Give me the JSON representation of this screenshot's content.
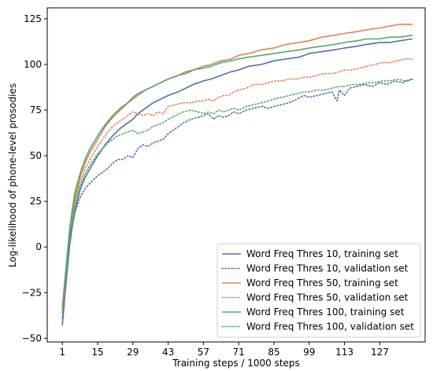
{
  "chart_data": {
    "type": "line",
    "title": "",
    "xlabel": "Training steps / 1000 steps",
    "ylabel": "Log-likelihood of phone-level prosodies",
    "xlim": [
      -5,
      145
    ],
    "ylim": [
      -52,
      131
    ],
    "xticks": [
      1,
      15,
      29,
      43,
      57,
      71,
      85,
      99,
      113,
      127
    ],
    "yticks": [
      -50,
      -25,
      0,
      25,
      50,
      75,
      100,
      125
    ],
    "grid": false,
    "legend_position": "lower-right",
    "series": [
      {
        "name": "Word Freq Thres 10, training set",
        "color": "#4c72b0",
        "style": "solid",
        "x": [
          1,
          2,
          3,
          4,
          5,
          6,
          8,
          10,
          12,
          15,
          18,
          21,
          24,
          27,
          29,
          31,
          34,
          37,
          40,
          43,
          47,
          50,
          53,
          57,
          60,
          64,
          68,
          71,
          75,
          80,
          85,
          90,
          95,
          99,
          104,
          109,
          113,
          118,
          122,
          127,
          131,
          135,
          140
        ],
        "y": [
          -43,
          -27,
          -12,
          2,
          12,
          20,
          31,
          38,
          43,
          50,
          56,
          61,
          65,
          68,
          70,
          73,
          76,
          79,
          81,
          83,
          85,
          87,
          89,
          91,
          92,
          94,
          96,
          97,
          99,
          100,
          102,
          103,
          104,
          106,
          107,
          108,
          109,
          110,
          111,
          112,
          112,
          113,
          114
        ]
      },
      {
        "name": "Word Freq Thres 10, validation set",
        "color": "#4c72b0",
        "style": "dotted",
        "x": [
          1,
          2,
          3,
          4,
          5,
          6,
          8,
          10,
          12,
          15,
          17,
          19,
          21,
          23,
          25,
          27,
          29,
          31,
          33,
          35,
          37,
          39,
          41,
          43,
          46,
          49,
          52,
          55,
          57,
          59,
          61,
          63,
          65,
          67,
          69,
          71,
          74,
          77,
          80,
          83,
          85,
          88,
          91,
          94,
          97,
          99,
          102,
          105,
          108,
          110,
          111,
          113,
          115,
          118,
          121,
          124,
          127,
          130,
          133,
          136,
          140
        ],
        "y": [
          -39,
          -25,
          -11,
          3,
          12,
          19,
          27,
          32,
          35,
          39,
          41,
          43,
          46,
          48,
          48,
          50,
          49,
          54,
          56,
          55,
          57,
          58,
          59,
          62,
          65,
          68,
          70,
          71,
          72,
          73,
          70,
          72,
          71,
          72,
          74,
          73,
          75,
          76,
          77,
          76,
          77,
          78,
          79,
          81,
          83,
          82,
          83,
          84,
          85,
          80,
          86,
          83,
          87,
          88,
          89,
          88,
          90,
          89,
          91,
          90,
          92
        ]
      },
      {
        "name": "Word Freq Thres 50, training set",
        "color": "#dd8452",
        "style": "solid",
        "x": [
          1,
          2,
          3,
          4,
          5,
          6,
          8,
          10,
          12,
          15,
          18,
          21,
          24,
          27,
          29,
          31,
          34,
          37,
          40,
          43,
          47,
          50,
          53,
          57,
          60,
          64,
          68,
          71,
          75,
          80,
          85,
          90,
          95,
          99,
          104,
          109,
          113,
          118,
          122,
          127,
          131,
          135,
          140
        ],
        "y": [
          -37,
          -22,
          -7,
          8,
          19,
          27,
          38,
          46,
          52,
          59,
          66,
          71,
          75,
          79,
          81,
          83,
          86,
          88,
          90,
          92,
          94,
          96,
          97,
          99,
          100,
          102,
          103,
          105,
          106,
          108,
          109,
          111,
          112,
          113,
          115,
          116,
          117,
          118,
          119,
          120,
          121,
          122,
          122
        ]
      },
      {
        "name": "Word Freq Thres 50, validation set",
        "color": "#dd8452",
        "style": "dotted",
        "x": [
          1,
          2,
          3,
          4,
          5,
          6,
          8,
          10,
          12,
          15,
          17,
          19,
          21,
          23,
          25,
          27,
          29,
          31,
          33,
          35,
          37,
          39,
          41,
          43,
          46,
          49,
          52,
          55,
          57,
          59,
          61,
          63,
          65,
          67,
          69,
          71,
          74,
          77,
          80,
          83,
          85,
          88,
          91,
          94,
          97,
          99,
          102,
          105,
          108,
          111,
          113,
          116,
          119,
          122,
          125,
          128,
          131,
          134,
          137,
          140
        ],
        "y": [
          -35,
          -20,
          -6,
          8,
          18,
          25,
          35,
          43,
          48,
          55,
          59,
          63,
          66,
          68,
          70,
          72,
          74,
          73,
          72,
          73,
          72,
          74,
          73,
          77,
          78,
          79,
          79,
          80,
          80,
          81,
          80,
          82,
          83,
          83,
          85,
          86,
          87,
          89,
          89,
          90,
          91,
          91,
          92,
          92,
          93,
          93,
          94,
          95,
          95,
          96,
          97,
          97,
          98,
          99,
          100,
          101,
          101,
          102,
          103,
          103
        ]
      },
      {
        "name": "Word Freq Thres 100, training set",
        "color": "#55a868",
        "style": "solid",
        "x": [
          1,
          2,
          3,
          4,
          5,
          6,
          8,
          10,
          12,
          15,
          18,
          21,
          24,
          27,
          29,
          31,
          34,
          37,
          40,
          43,
          47,
          50,
          53,
          57,
          60,
          64,
          68,
          71,
          75,
          80,
          85,
          90,
          95,
          99,
          104,
          109,
          113,
          118,
          122,
          127,
          131,
          135,
          140
        ],
        "y": [
          -33,
          -18,
          -3,
          11,
          21,
          30,
          40,
          48,
          54,
          61,
          67,
          72,
          76,
          79,
          82,
          84,
          86,
          88,
          90,
          92,
          94,
          95,
          97,
          98,
          99,
          101,
          102,
          103,
          104,
          105,
          106,
          107,
          108,
          109,
          110,
          111,
          112,
          113,
          114,
          114,
          115,
          115,
          116
        ]
      },
      {
        "name": "Word Freq Thres 100, validation set",
        "color": "#55a868",
        "style": "dotted",
        "x": [
          1,
          2,
          3,
          4,
          5,
          6,
          8,
          10,
          12,
          15,
          17,
          19,
          21,
          23,
          25,
          27,
          29,
          31,
          33,
          35,
          37,
          39,
          41,
          43,
          46,
          49,
          52,
          55,
          57,
          59,
          61,
          63,
          65,
          67,
          69,
          71,
          74,
          77,
          80,
          83,
          85,
          88,
          91,
          94,
          97,
          99,
          102,
          105,
          108,
          111,
          113,
          116,
          119,
          122,
          125,
          128,
          131,
          134,
          137,
          140
        ],
        "y": [
          -36,
          -21,
          -7,
          6,
          16,
          23,
          33,
          40,
          45,
          51,
          54,
          57,
          59,
          61,
          62,
          63,
          64,
          62,
          63,
          64,
          66,
          67,
          68,
          70,
          72,
          74,
          75,
          74,
          73,
          74,
          73,
          75,
          74,
          75,
          76,
          75,
          77,
          78,
          79,
          80,
          81,
          82,
          83,
          84,
          85,
          85,
          86,
          86,
          87,
          88,
          88,
          89,
          89,
          90,
          90,
          91,
          91,
          92,
          91,
          92
        ]
      }
    ]
  }
}
